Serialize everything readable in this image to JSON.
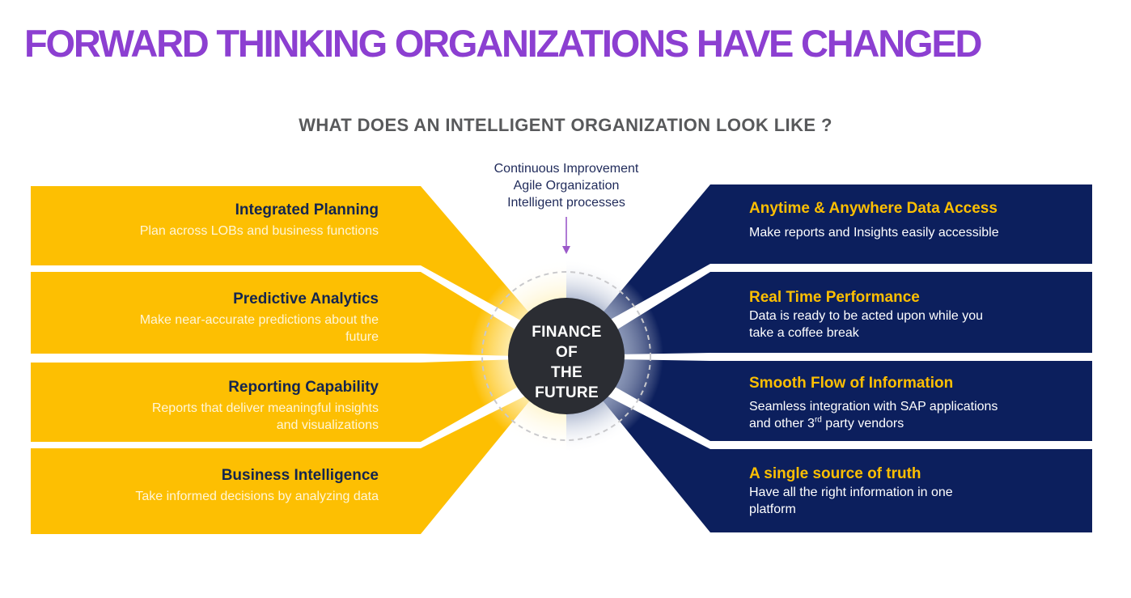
{
  "title": "FORWARD THINKING ORGANIZATIONS HAVE CHANGED",
  "subtitle": "WHAT DOES AN INTELLIGENT ORGANIZATION LOOK LIKE ?",
  "top_note": [
    "Continuous Improvement",
    "Agile Organization",
    "Intelligent processes"
  ],
  "center": {
    "lines": [
      "FINANCE",
      "OF",
      "THE",
      "FUTURE"
    ]
  },
  "left_panels": [
    {
      "heading": "Integrated Planning",
      "lines": [
        "Plan across LOBs and business functions"
      ]
    },
    {
      "heading": "Predictive Analytics",
      "lines": [
        "Make near-accurate predictions about the",
        "future"
      ]
    },
    {
      "heading": "Reporting Capability",
      "lines": [
        "Reports that deliver meaningful insights",
        "and visualizations"
      ]
    },
    {
      "heading": "Business Intelligence",
      "lines": [
        "Take informed decisions by analyzing data"
      ]
    }
  ],
  "right_panels": [
    {
      "heading": "Anytime & Anywhere Data Access",
      "lines": [
        "Make reports and Insights easily accessible"
      ]
    },
    {
      "heading": "Real Time Performance",
      "lines": [
        "Data is ready to be acted upon while you",
        "take a coffee break"
      ]
    },
    {
      "heading": "Smooth Flow of Information",
      "lines": [
        "Seamless integration with SAP applications",
        "and other 3",
        "rd",
        " party vendors"
      ]
    },
    {
      "heading": "A single source of truth",
      "lines": [
        "Have all the right information in one",
        "platform"
      ]
    }
  ],
  "colors": {
    "title": "#8c3fd1",
    "subtitle": "#58595b",
    "yellow": "#fdbf02",
    "navy": "#0c1f5d",
    "left_heading": "#14254f",
    "right_heading": "#fdbf02",
    "center_circle": "#2b2d33",
    "arrow": "#9b59c9"
  }
}
